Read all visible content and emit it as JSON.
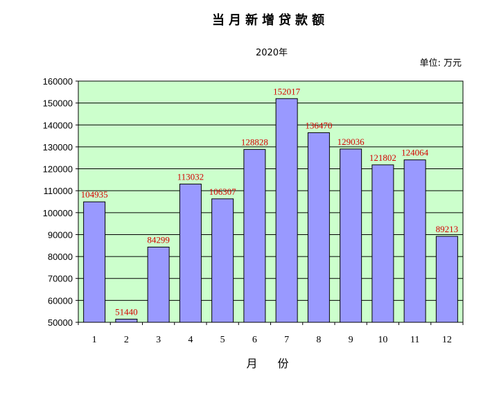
{
  "chart_data": {
    "type": "bar",
    "title": "当月新增贷款额",
    "subtitle": "2020年",
    "unit_label": "单位: 万元",
    "xlabel": "月 份",
    "ylabel": "",
    "categories": [
      "1",
      "2",
      "3",
      "4",
      "5",
      "6",
      "7",
      "8",
      "9",
      "10",
      "11",
      "12"
    ],
    "values": [
      104935,
      51440,
      84299,
      113032,
      106307,
      128828,
      152017,
      136470,
      129036,
      121802,
      124064,
      89213
    ],
    "value_labels": [
      "104935",
      "51440",
      "84299",
      "113032",
      "106307",
      "128828",
      "152017",
      "136470",
      "129036",
      "121802",
      "124064",
      "89213"
    ],
    "ylim": [
      50000,
      160000
    ],
    "yticks": [
      "50000",
      "60000",
      "70000",
      "80000",
      "90000",
      "100000",
      "110000",
      "120000",
      "130000",
      "140000",
      "150000",
      "160000"
    ],
    "grid": true,
    "colors": {
      "plot_background": "#ccffcc",
      "bar_fill": "#9999ff",
      "bar_stroke": "#000000",
      "data_label": "#d40000"
    }
  }
}
